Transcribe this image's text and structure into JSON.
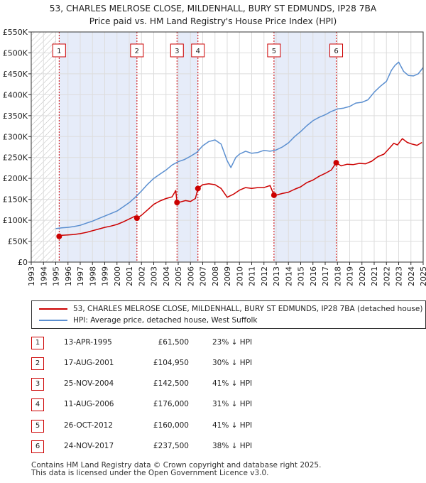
{
  "title_line1": "53, CHARLES MELROSE CLOSE, MILDENHALL, BURY ST EDMUNDS, IP28 7BA",
  "title_line2": "Price paid vs. HM Land Registry's House Price Index (HPI)",
  "chart_data": {
    "type": "line",
    "title": "53, CHARLES MELROSE CLOSE, MILDENHALL, BURY ST EDMUNDS, IP28 7BA - Price paid vs. HM Land Registry's House Price Index (HPI)",
    "xlabel": "",
    "ylabel": "",
    "xlim": [
      1993,
      2025
    ],
    "ylim": [
      0,
      550000
    ],
    "ytick_values": [
      0,
      50000,
      100000,
      150000,
      200000,
      250000,
      300000,
      350000,
      400000,
      450000,
      500000,
      550000
    ],
    "ytick_labels": [
      "£0",
      "£50K",
      "£100K",
      "£150K",
      "£200K",
      "£250K",
      "£300K",
      "£350K",
      "£400K",
      "£450K",
      "£500K",
      "£550K"
    ],
    "xtick_labels": [
      "1993",
      "1994",
      "1995",
      "1996",
      "1997",
      "1998",
      "1999",
      "2000",
      "2001",
      "2002",
      "2003",
      "2004",
      "2005",
      "2006",
      "2007",
      "2008",
      "2009",
      "2010",
      "2011",
      "2012",
      "2013",
      "2014",
      "2015",
      "2016",
      "2017",
      "2018",
      "2019",
      "2020",
      "2021",
      "2022",
      "2023",
      "2024",
      "2025"
    ],
    "hatch_range": [
      1993,
      1995.0
    ],
    "series": [
      {
        "name": "53, CHARLES MELROSE CLOSE, MILDENHALL, BURY ST EDMUNDS, IP28 7BA (detached house)",
        "color": "#cc0000",
        "x": [
          1995.28,
          1995.5,
          1996.0,
          1996.5,
          1997.0,
          1997.5,
          1998.0,
          1998.5,
          1999.0,
          1999.5,
          2000.0,
          2000.5,
          2001.0,
          2001.5,
          2001.63,
          2002.0,
          2002.5,
          2003.0,
          2003.5,
          2004.0,
          2004.5,
          2004.8,
          2004.9,
          2005.2,
          2005.6,
          2006.0,
          2006.4,
          2006.61,
          2007.0,
          2007.5,
          2008.0,
          2008.5,
          2009.0,
          2009.5,
          2010.0,
          2010.5,
          2011.0,
          2011.5,
          2012.0,
          2012.5,
          2012.82,
          2013.0,
          2013.5,
          2014.0,
          2014.5,
          2015.0,
          2015.5,
          2016.0,
          2016.5,
          2017.0,
          2017.5,
          2017.9,
          2018.3,
          2018.8,
          2019.3,
          2019.8,
          2020.3,
          2020.8,
          2021.3,
          2021.8,
          2022.3,
          2022.6,
          2022.9,
          2023.3,
          2023.7,
          2024.1,
          2024.5,
          2024.9
        ],
        "values": [
          61500,
          64000,
          65000,
          66000,
          68000,
          71000,
          75000,
          79000,
          83000,
          86000,
          90000,
          96000,
          103000,
          110000,
          104950,
          112000,
          125000,
          138000,
          146000,
          152000,
          156000,
          171000,
          142500,
          144000,
          147000,
          145000,
          152000,
          176000,
          185000,
          187000,
          185000,
          176000,
          155000,
          162000,
          172000,
          178000,
          176000,
          178000,
          178000,
          183000,
          160000,
          160000,
          164000,
          167000,
          174000,
          180000,
          190000,
          196000,
          205000,
          212000,
          220000,
          237500,
          230000,
          234000,
          233000,
          236000,
          235000,
          241000,
          252000,
          258000,
          274000,
          284000,
          280000,
          295000,
          286000,
          282000,
          279000,
          286000
        ]
      },
      {
        "name": "HPI: Average price, detached house, West Suffolk",
        "color": "#5b8fd0",
        "x": [
          1995.0,
          1995.5,
          1996.0,
          1996.5,
          1997.0,
          1997.5,
          1998.0,
          1998.5,
          1999.0,
          1999.5,
          2000.0,
          2000.5,
          2001.0,
          2001.5,
          2002.0,
          2002.5,
          2003.0,
          2003.5,
          2004.0,
          2004.5,
          2005.0,
          2005.5,
          2006.0,
          2006.5,
          2007.0,
          2007.5,
          2008.0,
          2008.5,
          2009.0,
          2009.3,
          2009.7,
          2010.0,
          2010.5,
          2011.0,
          2011.5,
          2012.0,
          2012.5,
          2013.0,
          2013.5,
          2014.0,
          2014.5,
          2015.0,
          2015.5,
          2016.0,
          2016.5,
          2017.0,
          2017.5,
          2018.0,
          2018.5,
          2019.0,
          2019.5,
          2020.0,
          2020.5,
          2021.0,
          2021.5,
          2022.0,
          2022.4,
          2022.7,
          2023.0,
          2023.4,
          2023.8,
          2024.2,
          2024.6,
          2025.0
        ],
        "values": [
          80000,
          82000,
          83000,
          85000,
          88000,
          93000,
          98000,
          104000,
          110000,
          116000,
          122000,
          132000,
          142000,
          155000,
          170000,
          186000,
          200000,
          210000,
          220000,
          232000,
          240000,
          245000,
          253000,
          262000,
          278000,
          288000,
          292000,
          282000,
          242000,
          226000,
          250000,
          258000,
          265000,
          260000,
          262000,
          267000,
          265000,
          268000,
          275000,
          285000,
          300000,
          312000,
          326000,
          338000,
          346000,
          352000,
          360000,
          366000,
          368000,
          372000,
          380000,
          382000,
          388000,
          406000,
          420000,
          432000,
          458000,
          470000,
          478000,
          456000,
          446000,
          445000,
          450000,
          465000
        ]
      }
    ],
    "sales": [
      {
        "label": "1",
        "x": 1995.28,
        "value": 61500
      },
      {
        "label": "2",
        "x": 2001.63,
        "value": 104950
      },
      {
        "label": "3",
        "x": 2004.9,
        "value": 142500
      },
      {
        "label": "4",
        "x": 2006.61,
        "value": 176000
      },
      {
        "label": "5",
        "x": 2012.82,
        "value": 160000
      },
      {
        "label": "6",
        "x": 2017.9,
        "value": 237500
      }
    ],
    "shaded_spans": [
      [
        1995.28,
        2001.63
      ],
      [
        2004.9,
        2006.61
      ],
      [
        2012.82,
        2017.9
      ]
    ]
  },
  "legend": {
    "property": "53, CHARLES MELROSE CLOSE, MILDENHALL, BURY ST EDMUNDS, IP28 7BA (detached house)",
    "hpi": "HPI: Average price, detached house, West Suffolk",
    "property_color": "#cc0000",
    "hpi_color": "#5b8fd0"
  },
  "transactions": [
    {
      "num": "1",
      "date": "13-APR-1995",
      "price": "£61,500",
      "hpi": "23% ↓ HPI"
    },
    {
      "num": "2",
      "date": "17-AUG-2001",
      "price": "£104,950",
      "hpi": "30% ↓ HPI"
    },
    {
      "num": "3",
      "date": "25-NOV-2004",
      "price": "£142,500",
      "hpi": "41% ↓ HPI"
    },
    {
      "num": "4",
      "date": "11-AUG-2006",
      "price": "£176,000",
      "hpi": "31% ↓ HPI"
    },
    {
      "num": "5",
      "date": "26-OCT-2012",
      "price": "£160,000",
      "hpi": "41% ↓ HPI"
    },
    {
      "num": "6",
      "date": "24-NOV-2017",
      "price": "£237,500",
      "hpi": "38% ↓ HPI"
    }
  ],
  "footer_line1": "Contains HM Land Registry data © Crown copyright and database right 2025.",
  "footer_line2": "This data is licensed under the Open Government Licence v3.0."
}
